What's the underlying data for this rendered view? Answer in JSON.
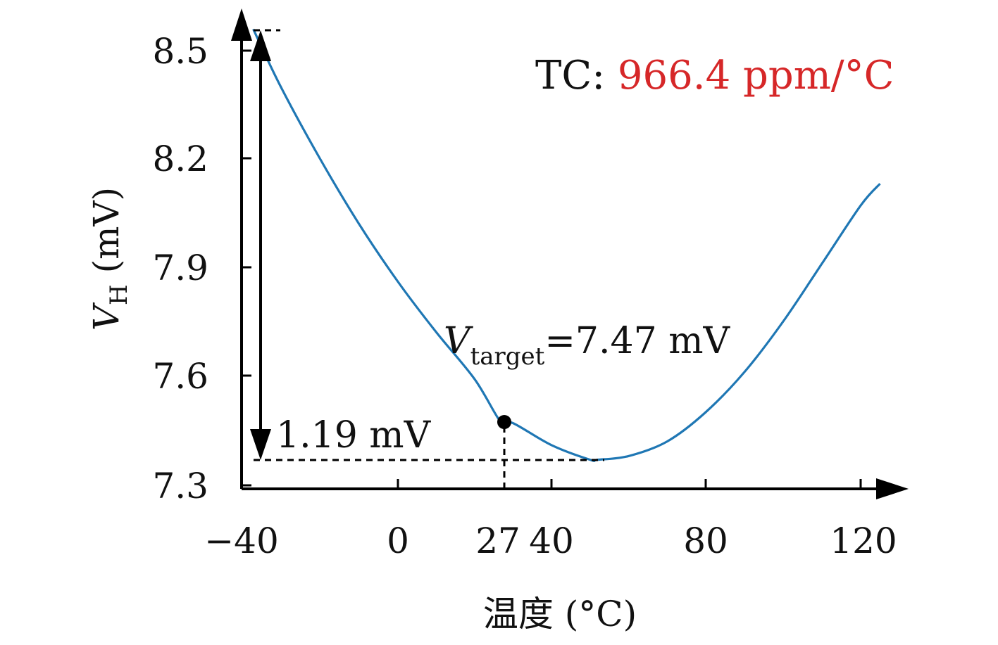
{
  "chart_data": {
    "type": "line",
    "series": [
      {
        "x": [
          -37,
          -30,
          -20,
          -10,
          0,
          10,
          20,
          27,
          30,
          40,
          50,
          52,
          60,
          70,
          80,
          90,
          100,
          110,
          120,
          125
        ],
        "y": [
          8.56,
          8.4,
          8.2,
          8.02,
          7.86,
          7.72,
          7.59,
          7.47,
          7.47,
          7.41,
          7.37,
          7.37,
          7.38,
          7.42,
          7.5,
          7.61,
          7.75,
          7.91,
          8.07,
          8.13
        ],
        "color": "#1f77b4"
      }
    ],
    "xlim": [
      -40,
      130
    ],
    "ylim": [
      7.3,
      8.6
    ],
    "x_ticks": [
      {
        "value": -40,
        "label": "−40"
      },
      {
        "value": 0,
        "label": "0"
      },
      {
        "value": 27,
        "label": "27"
      },
      {
        "value": 40,
        "label": "40"
      },
      {
        "value": 80,
        "label": "80"
      },
      {
        "value": 120,
        "label": "120"
      }
    ],
    "y_ticks": [
      {
        "value": 7.3,
        "label": "7.3"
      },
      {
        "value": 7.6,
        "label": "7.6"
      },
      {
        "value": 7.9,
        "label": "7.9"
      },
      {
        "value": 8.2,
        "label": "8.2"
      },
      {
        "value": 8.5,
        "label": "8.5"
      }
    ],
    "xlabel": "温度 (°C)",
    "ylabel_main": "V",
    "ylabel_sub": "H",
    "ylabel_unit": " (mV)",
    "marker_point": {
      "x": 27,
      "y": 7.47
    },
    "vtarget_label_main": "V",
    "vtarget_label_sub": "target",
    "vtarget_label_value": "=7.47 mV",
    "span_label": "1.19 mV",
    "span_top": 8.56,
    "span_bottom": 7.37,
    "tc_prefix": "TC: ",
    "tc_value": "966.4 ppm/°C",
    "tc_color": "#d62728",
    "grid": false
  }
}
